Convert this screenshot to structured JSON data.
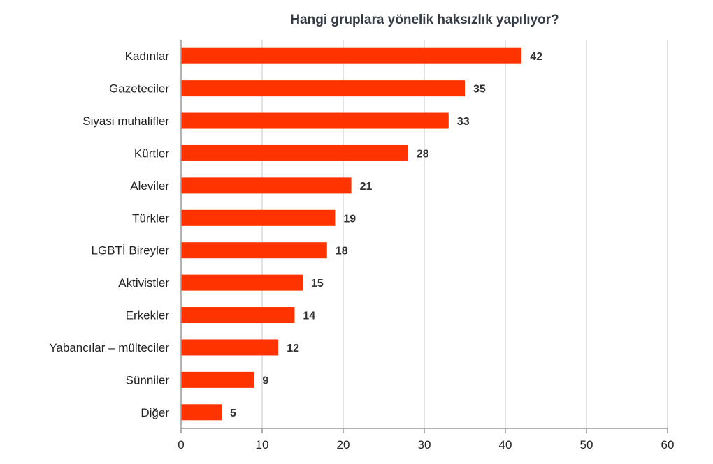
{
  "chart_data": {
    "type": "bar",
    "orientation": "horizontal",
    "title": "Hangi gruplara yönelik haksızlık yapılıyor?",
    "categories": [
      "Kadınlar",
      "Gazeteciler",
      "Siyasi muhalifler",
      "Kürtler",
      "Aleviler",
      "Türkler",
      "LGBTİ Bireyler",
      "Aktivistler",
      "Erkekler",
      "Yabancılar – mülteciler",
      "Sünniler",
      "Diğer"
    ],
    "values": [
      42,
      35,
      33,
      28,
      21,
      19,
      18,
      15,
      14,
      12,
      9,
      5
    ],
    "value_labels": [
      "42",
      "35",
      "33",
      "28",
      "21",
      "19",
      "18",
      "15",
      "14",
      "12",
      "9",
      "5"
    ],
    "xlabel": "",
    "ylabel": "",
    "xlim": [
      0,
      60
    ],
    "x_ticks": [
      0,
      10,
      20,
      30,
      40,
      50,
      60
    ],
    "x_tick_labels": [
      "0",
      "10",
      "20",
      "30",
      "40",
      "50",
      "60"
    ],
    "grid": true,
    "bar_color": "#ff3300",
    "grid_color": "#d9d9d9",
    "axis_color": "#999999"
  }
}
